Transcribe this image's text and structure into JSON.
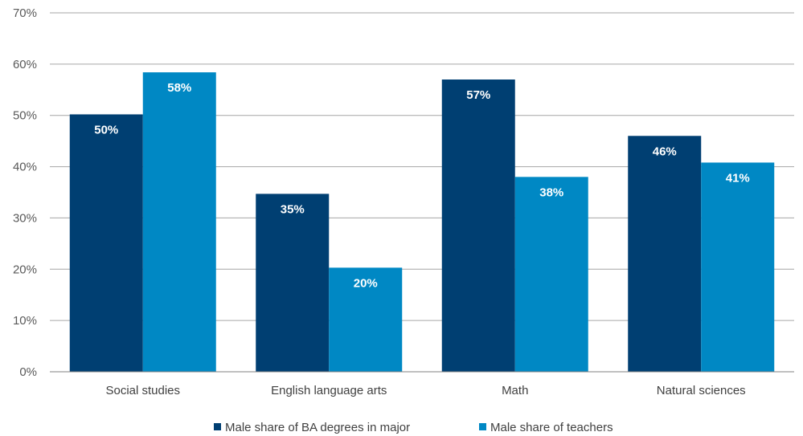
{
  "chart_data": {
    "type": "bar",
    "categories": [
      "Social studies",
      "English language arts",
      "Math",
      "Natural sciences"
    ],
    "series": [
      {
        "name": "Male share of BA degrees in major",
        "values": [
          50.2,
          34.7,
          57.0,
          46.0
        ],
        "labels": [
          "50%",
          "35%",
          "57%",
          "46%"
        ],
        "color": "#003f72"
      },
      {
        "name": "Male share of teachers",
        "values": [
          58.4,
          20.3,
          38.0,
          40.8
        ],
        "labels": [
          "58%",
          "20%",
          "38%",
          "41%"
        ],
        "color": "#0088c4"
      }
    ],
    "ylim": [
      0,
      70
    ],
    "yticks": [
      0,
      10,
      20,
      30,
      40,
      50,
      60,
      70
    ],
    "ytick_labels": [
      "0%",
      "10%",
      "20%",
      "30%",
      "40%",
      "50%",
      "60%",
      "70%"
    ],
    "grid": true,
    "legend_position": "bottom",
    "title": "",
    "xlabel": "",
    "ylabel": ""
  }
}
